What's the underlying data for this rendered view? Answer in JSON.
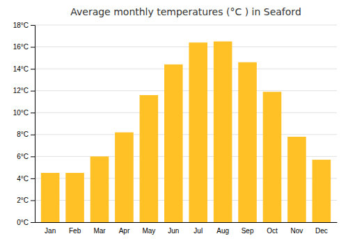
{
  "chart_data": {
    "type": "bar",
    "title": "Average monthly temperatures (°C ) in Seaford",
    "categories": [
      "Jan",
      "Feb",
      "Mar",
      "Apr",
      "May",
      "Jun",
      "Jul",
      "Aug",
      "Sep",
      "Oct",
      "Nov",
      "Dec"
    ],
    "values": [
      4.5,
      4.5,
      6.0,
      8.2,
      11.6,
      14.4,
      16.4,
      16.5,
      14.6,
      11.9,
      7.8,
      5.7
    ],
    "color": "#FFC125",
    "ylim": [
      0,
      18
    ],
    "yticks": [
      {
        "value": 0,
        "label": "0°C"
      },
      {
        "value": 2,
        "label": "2°C"
      },
      {
        "value": 4,
        "label": "4°C"
      },
      {
        "value": 6,
        "label": "6°C"
      },
      {
        "value": 8,
        "label": "8°C"
      },
      {
        "value": 10,
        "label": "10°C"
      },
      {
        "value": 12,
        "label": "12°C"
      },
      {
        "value": 14,
        "label": "14°C"
      },
      {
        "value": 16,
        "label": "16°C"
      },
      {
        "value": 18,
        "label": "18°C"
      }
    ],
    "grid": true
  }
}
